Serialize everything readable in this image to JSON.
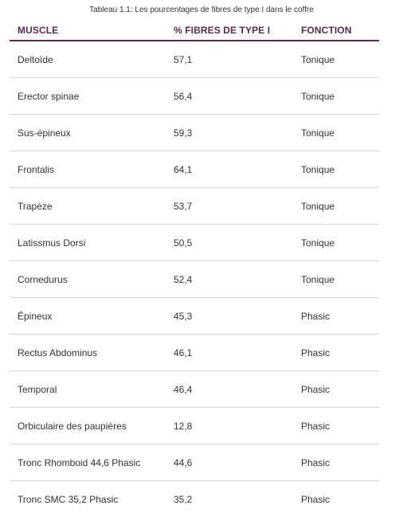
{
  "caption": "Tableau 1.1: Les pourcentages de fibres de type I dans le coffre",
  "headers": {
    "muscle": "MUSCLE",
    "pct": "% FIBRES DE TYPE I",
    "function": "FONCTION"
  },
  "rows": [
    {
      "muscle": "Deltoïde",
      "pct": "57,1",
      "function": "Tonique"
    },
    {
      "muscle": "Erector spinae",
      "pct": "56,4",
      "function": "Tonique"
    },
    {
      "muscle": "Sus-épineux",
      "pct": "59,3",
      "function": "Tonique"
    },
    {
      "muscle": "Frontalis",
      "pct": "64,1",
      "function": "Tonique"
    },
    {
      "muscle": "Trapèze",
      "pct": "53,7",
      "function": "Tonique"
    },
    {
      "muscle": "Latissmus Dorsi",
      "pct": "50,5",
      "function": "Tonique"
    },
    {
      "muscle": "Cornedurus",
      "pct": "52,4",
      "function": "Tonique"
    },
    {
      "muscle": "Épineux",
      "pct": "45,3",
      "function": "Phasic"
    },
    {
      "muscle": "Rectus Abdominus",
      "pct": "46,1",
      "function": "Phasic"
    },
    {
      "muscle": "Temporal",
      "pct": "46,4",
      "function": "Phasic"
    },
    {
      "muscle": "Orbiculaire des paupières",
      "pct": "12,8",
      "function": "Phasic"
    },
    {
      "muscle": "Tronc Rhomboid 44,6 Phasic",
      "pct": "44,6",
      "function": "Phasic"
    },
    {
      "muscle": "Tronc SMC 35,2 Phasic",
      "pct": "35,2",
      "function": "Phasic"
    }
  ],
  "colors": {
    "header_text": "#5a2a52",
    "header_rule": "#5a2a52",
    "row_rule": "#d6d6d6",
    "body_text": "#333333"
  }
}
